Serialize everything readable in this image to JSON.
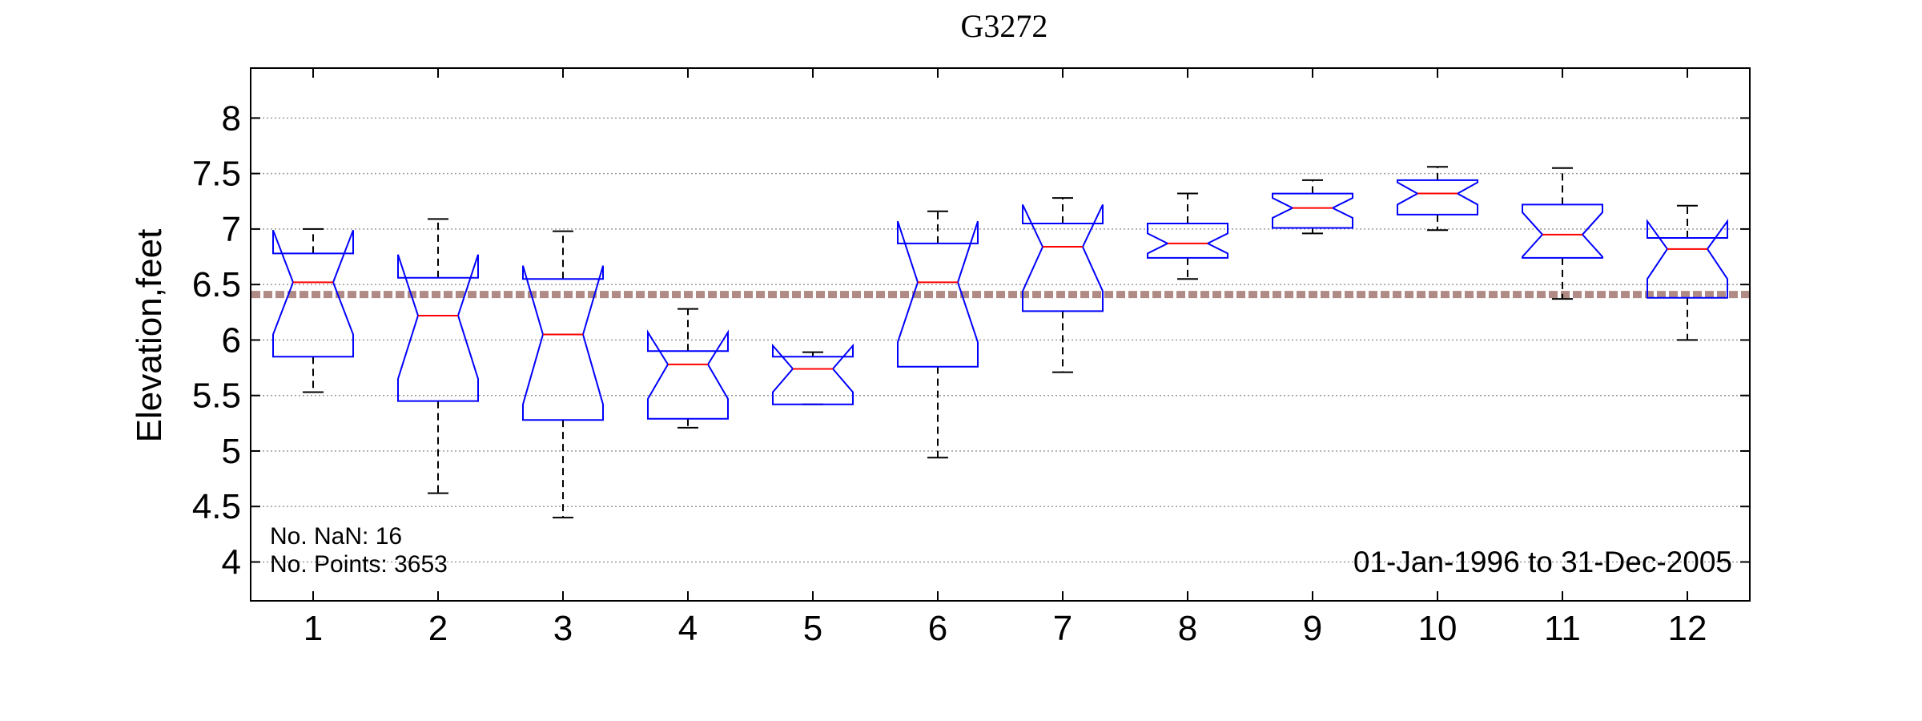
{
  "chart_data": {
    "type": "box",
    "title": "G3272",
    "xlabel": "",
    "ylabel": "Elevation,feet",
    "ylim": [
      3.65,
      8.45
    ],
    "yticks": [
      4,
      4.5,
      5,
      5.5,
      6,
      6.5,
      7,
      7.5,
      8
    ],
    "grid": "horizontal-dotted",
    "categories": [
      "1",
      "2",
      "3",
      "4",
      "5",
      "6",
      "7",
      "8",
      "9",
      "10",
      "11",
      "12"
    ],
    "boxes": [
      {
        "whisker_low": 5.53,
        "q1": 5.85,
        "median": 6.52,
        "q3": 6.78,
        "whisker_high": 7.0,
        "notch_low": 6.05,
        "notch_high": 6.99
      },
      {
        "whisker_low": 4.62,
        "q1": 5.45,
        "median": 6.22,
        "q3": 6.56,
        "whisker_high": 7.09,
        "notch_low": 5.65,
        "notch_high": 6.77
      },
      {
        "whisker_low": 4.4,
        "q1": 5.28,
        "median": 6.05,
        "q3": 6.55,
        "whisker_high": 6.98,
        "notch_low": 5.42,
        "notch_high": 6.67
      },
      {
        "whisker_low": 5.21,
        "q1": 5.29,
        "median": 5.78,
        "q3": 5.9,
        "whisker_high": 6.28,
        "notch_low": 5.47,
        "notch_high": 6.07
      },
      {
        "whisker_low": 5.42,
        "q1": 5.42,
        "median": 5.74,
        "q3": 5.85,
        "whisker_high": 5.89,
        "notch_low": 5.53,
        "notch_high": 5.95
      },
      {
        "whisker_low": 4.94,
        "q1": 5.76,
        "median": 6.52,
        "q3": 6.87,
        "whisker_high": 7.16,
        "notch_low": 5.98,
        "notch_high": 7.07
      },
      {
        "whisker_low": 5.71,
        "q1": 6.26,
        "median": 6.84,
        "q3": 7.05,
        "whisker_high": 7.28,
        "notch_low": 6.44,
        "notch_high": 7.22
      },
      {
        "whisker_low": 6.55,
        "q1": 6.74,
        "median": 6.87,
        "q3": 7.05,
        "whisker_high": 7.32,
        "notch_low": 6.78,
        "notch_high": 6.96
      },
      {
        "whisker_low": 6.96,
        "q1": 7.01,
        "median": 7.19,
        "q3": 7.32,
        "whisker_high": 7.44,
        "notch_low": 7.1,
        "notch_high": 7.28
      },
      {
        "whisker_low": 6.99,
        "q1": 7.13,
        "median": 7.32,
        "q3": 7.44,
        "whisker_high": 7.56,
        "notch_low": 7.22,
        "notch_high": 7.42
      },
      {
        "whisker_low": 6.37,
        "q1": 6.74,
        "median": 6.95,
        "q3": 7.22,
        "whisker_high": 7.55,
        "notch_low": 6.75,
        "notch_high": 7.15
      },
      {
        "whisker_low": 6.0,
        "q1": 6.38,
        "median": 6.82,
        "q3": 6.92,
        "whisker_high": 7.21,
        "notch_low": 6.55,
        "notch_high": 7.07
      }
    ],
    "reference_line": {
      "value": 6.41,
      "style": "dashed",
      "color": "#b08a84"
    },
    "annotations": {
      "nan_count": "No. NaN: 16",
      "point_count": "No. Points: 3653",
      "date_range": "01-Jan-1996 to 31-Dec-2005"
    },
    "colors": {
      "box": "#0000ff",
      "median": "#ff0000",
      "whisker": "#000000",
      "grid": "#9a9a9a",
      "axes": "#000000"
    }
  }
}
